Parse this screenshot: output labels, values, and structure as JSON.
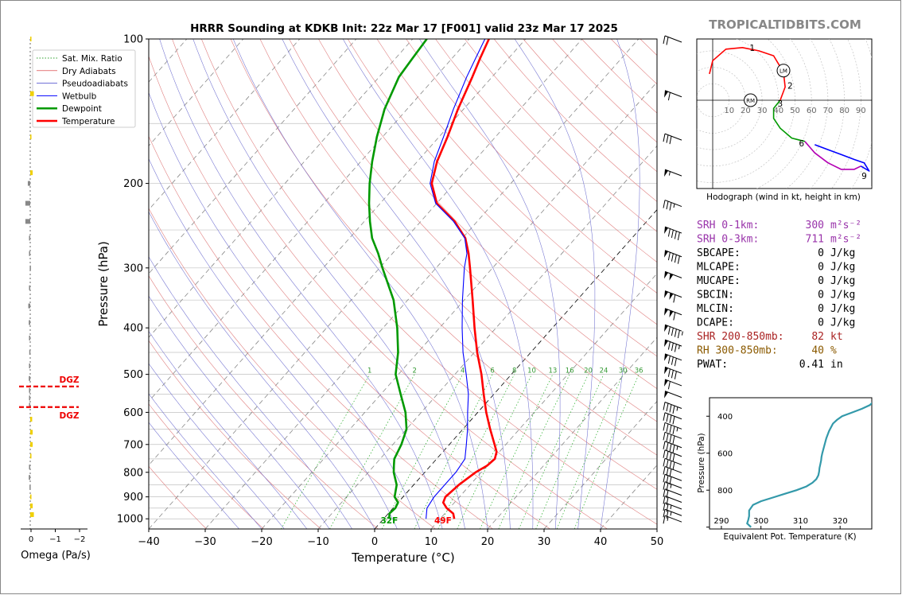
{
  "chart_data": [
    {
      "type": "skew-t",
      "title": "HRRR Sounding at KDKB Init: 22z Mar 17 [F001] valid 23z Mar 17 2025",
      "xlabel": "Temperature (°C)",
      "ylabel": "Pressure (hPa)",
      "xlim": [
        -40,
        50
      ],
      "ylim": [
        1050,
        100
      ],
      "yscale": "log",
      "xticks": [
        "−40",
        "−30",
        "−20",
        "−10",
        "0",
        "10",
        "20",
        "30",
        "40",
        "50"
      ],
      "yticks": [
        "100",
        "200",
        "300",
        "400",
        "500",
        "600",
        "700",
        "800",
        "900",
        "1000"
      ],
      "legend_position": "top-left",
      "legend": [
        {
          "label": "Sat. Mix. Ratio",
          "color": "#2ca02c",
          "style": "dotted"
        },
        {
          "label": "Dry Adiabats",
          "color": "#d62728",
          "style": "solid-thin"
        },
        {
          "label": "Pseudoadiabats",
          "color": "#1f1fbf",
          "style": "solid-thin"
        },
        {
          "label": "Wetbulb",
          "color": "#0000ff",
          "style": "solid"
        },
        {
          "label": "Dewpoint",
          "color": "#009900",
          "style": "solid-thick"
        },
        {
          "label": "Temperature",
          "color": "#ff0000",
          "style": "solid-thick"
        }
      ],
      "series": [
        {
          "name": "Temperature",
          "color": "#ff0000",
          "points": [
            [
              1000,
              12.5
            ],
            [
              975,
              11.5
            ],
            [
              950,
              9.5
            ],
            [
              925,
              8
            ],
            [
              900,
              7.5
            ],
            [
              850,
              8
            ],
            [
              800,
              9
            ],
            [
              775,
              10
            ],
            [
              750,
              10.3
            ],
            [
              725,
              9.5
            ],
            [
              700,
              8
            ],
            [
              650,
              4.8
            ],
            [
              600,
              1.5
            ],
            [
              550,
              -1.8
            ],
            [
              500,
              -5.3
            ],
            [
              450,
              -9.5
            ],
            [
              400,
              -13.8
            ],
            [
              350,
              -18.5
            ],
            [
              300,
              -24
            ],
            [
              280,
              -26.5
            ],
            [
              260,
              -29.5
            ],
            [
              240,
              -34
            ],
            [
              220,
              -40
            ],
            [
              200,
              -44
            ],
            [
              180,
              -46.5
            ],
            [
              160,
              -48.5
            ],
            [
              140,
              -51
            ],
            [
              120,
              -53.5
            ],
            [
              110,
              -55
            ],
            [
              100,
              -56.5
            ]
          ]
        },
        {
          "name": "Wetbulb",
          "color": "#0000ff",
          "points": [
            [
              1000,
              7.5
            ],
            [
              950,
              6
            ],
            [
              900,
              5.5
            ],
            [
              850,
              5.5
            ],
            [
              800,
              5.5
            ],
            [
              750,
              5
            ],
            [
              700,
              3
            ],
            [
              650,
              0.8
            ],
            [
              600,
              -1.8
            ],
            [
              550,
              -4.5
            ],
            [
              500,
              -8
            ],
            [
              450,
              -12
            ],
            [
              400,
              -16
            ],
            [
              350,
              -20.3
            ],
            [
              300,
              -25
            ],
            [
              280,
              -26.8
            ],
            [
              260,
              -29.6
            ],
            [
              240,
              -34.2
            ],
            [
              220,
              -40.2
            ],
            [
              200,
              -44.3
            ],
            [
              180,
              -47
            ],
            [
              160,
              -49.2
            ],
            [
              140,
              -51.8
            ],
            [
              120,
              -54.5
            ],
            [
              110,
              -55.8
            ],
            [
              100,
              -57.2
            ]
          ]
        },
        {
          "name": "Dewpoint",
          "color": "#009900",
          "points": [
            [
              1000,
              1
            ],
            [
              975,
              0.2
            ],
            [
              950,
              0.4
            ],
            [
              925,
              0
            ],
            [
              900,
              -1.5
            ],
            [
              850,
              -3
            ],
            [
              800,
              -5.5
            ],
            [
              775,
              -6.5
            ],
            [
              750,
              -7.5
            ],
            [
              700,
              -8.5
            ],
            [
              650,
              -10
            ],
            [
              600,
              -12.8
            ],
            [
              550,
              -16.5
            ],
            [
              500,
              -20.5
            ],
            [
              450,
              -23.5
            ],
            [
              400,
              -27.5
            ],
            [
              350,
              -32.5
            ],
            [
              300,
              -39.5
            ],
            [
              280,
              -42.5
            ],
            [
              260,
              -46
            ],
            [
              240,
              -49
            ],
            [
              220,
              -52
            ],
            [
              200,
              -55
            ],
            [
              180,
              -58
            ],
            [
              160,
              -61
            ],
            [
              140,
              -64
            ],
            [
              120,
              -66.5
            ],
            [
              110,
              -67
            ],
            [
              100,
              -67.5
            ]
          ]
        }
      ],
      "surface_labels": [
        {
          "text": "32F",
          "color": "#009900"
        },
        {
          "text": "49F",
          "color": "#ff0000"
        }
      ],
      "mixing_ratio_labels": [
        "1",
        "2",
        "4",
        "6",
        "8",
        "10",
        "13",
        "16",
        "20",
        "24",
        "30",
        "36"
      ],
      "mixing_ratios": [
        1,
        2,
        4,
        6,
        8,
        10,
        13,
        16,
        20,
        24,
        30,
        36
      ],
      "wind_barb_pressures": [
        100,
        130,
        160,
        190,
        220,
        250,
        280,
        310,
        340,
        370,
        400,
        430,
        460,
        490,
        520,
        550,
        580,
        610,
        640,
        670,
        700,
        730,
        760,
        790,
        820,
        850,
        880,
        910,
        940,
        970,
        1000
      ],
      "wind_barb_speeds_kt": [
        20,
        60,
        30,
        55,
        35,
        90,
        90,
        100,
        110,
        110,
        95,
        85,
        80,
        80,
        60,
        50,
        45,
        40,
        45,
        40,
        45,
        40,
        40,
        30,
        30,
        25,
        20,
        20,
        25,
        25,
        15
      ]
    },
    {
      "type": "line",
      "title": "Omega",
      "xlabel": "Omega (Pa/s)",
      "xticks": [
        "0",
        "−1",
        "−2"
      ],
      "xlim": [
        0.3,
        -2.3
      ],
      "dgz_label": "DGZ",
      "dgz_bounds_hpa": [
        530,
        585
      ],
      "values_hpa_omega": [
        [
          100,
          -0.05
        ],
        [
          130,
          -0.15
        ],
        [
          160,
          -0.05
        ],
        [
          190,
          -0.1
        ],
        [
          200,
          0.1
        ],
        [
          220,
          0.2
        ],
        [
          240,
          0.2
        ],
        [
          260,
          0.05
        ],
        [
          280,
          0.05
        ],
        [
          300,
          0.02
        ],
        [
          330,
          0.05
        ],
        [
          360,
          0.08
        ],
        [
          390,
          0.06
        ],
        [
          420,
          0.05
        ],
        [
          450,
          0.04
        ],
        [
          480,
          0.05
        ],
        [
          510,
          0.06
        ],
        [
          540,
          0.05
        ],
        [
          560,
          0.05
        ],
        [
          580,
          0.05
        ],
        [
          620,
          -0.08
        ],
        [
          660,
          -0.1
        ],
        [
          700,
          -0.1
        ],
        [
          740,
          -0.05
        ],
        [
          780,
          0.05
        ],
        [
          820,
          0.06
        ],
        [
          860,
          0.03
        ],
        [
          900,
          -0.05
        ],
        [
          940,
          -0.1
        ],
        [
          980,
          -0.15
        ]
      ]
    },
    {
      "type": "hodograph",
      "title": "Hodograph (wind in kt, height in km)",
      "ring_labels": [
        "10",
        "20",
        "30",
        "40",
        "50",
        "60",
        "70",
        "80",
        "90"
      ],
      "height_labels": [
        "1",
        "2",
        "3",
        "6",
        "9"
      ],
      "storm_motion_labels": [
        "LM",
        "RM"
      ],
      "segments": [
        {
          "color": "#ff0000",
          "points": [
            [
              -2,
              16
            ],
            [
              0,
              24
            ],
            [
              8,
              31
            ],
            [
              18,
              32
            ],
            [
              28,
              30
            ],
            [
              37,
              27
            ],
            [
              43,
              17
            ],
            [
              44,
              8
            ],
            [
              41,
              0
            ]
          ]
        },
        {
          "color": "#009900",
          "points": [
            [
              41,
              0
            ],
            [
              37,
              -5
            ],
            [
              37,
              -11
            ],
            [
              41,
              -17
            ],
            [
              48,
              -23
            ],
            [
              52,
              -24
            ],
            [
              56,
              -25
            ]
          ]
        },
        {
          "color": "#b300b3",
          "points": [
            [
              56,
              -25
            ],
            [
              62,
              -32
            ],
            [
              70,
              -38
            ],
            [
              78,
              -42
            ],
            [
              86,
              -42
            ],
            [
              90,
              -40
            ]
          ]
        },
        {
          "color": "#0000ff",
          "points": [
            [
              90,
              -40
            ],
            [
              95,
              -43
            ],
            [
              92,
              -38
            ],
            [
              86,
              -36
            ],
            [
              78,
              -33
            ],
            [
              70,
              -30
            ],
            [
              62,
              -27
            ]
          ]
        }
      ]
    },
    {
      "type": "line",
      "title": "",
      "xlabel": "Equivalent Pot. Temperature (K)",
      "ylabel": "Pressure (hPa)",
      "xticks": [
        "290",
        "300",
        "310",
        "320"
      ],
      "yticks": [
        "400",
        "600",
        "800"
      ],
      "xlim": [
        287,
        328
      ],
      "ylim": [
        1010,
        300
      ],
      "color": "#3399aa",
      "points": [
        [
          1000,
          297.5
        ],
        [
          980,
          296.5
        ],
        [
          960,
          296.8
        ],
        [
          940,
          297
        ],
        [
          910,
          297
        ],
        [
          880,
          298
        ],
        [
          860,
          300
        ],
        [
          840,
          303
        ],
        [
          820,
          306
        ],
        [
          800,
          309
        ],
        [
          780,
          311.5
        ],
        [
          760,
          313
        ],
        [
          740,
          314
        ],
        [
          720,
          314.5
        ],
        [
          700,
          314.7
        ],
        [
          680,
          314.8
        ],
        [
          660,
          315
        ],
        [
          640,
          315.2
        ],
        [
          620,
          315.3
        ],
        [
          600,
          315.5
        ],
        [
          560,
          316
        ],
        [
          520,
          316.5
        ],
        [
          480,
          317.2
        ],
        [
          440,
          318.2
        ],
        [
          420,
          319.2
        ],
        [
          400,
          320.5
        ],
        [
          380,
          323
        ],
        [
          360,
          325.5
        ],
        [
          340,
          327.5
        ],
        [
          320,
          328.5
        ],
        [
          300,
          330
        ]
      ]
    }
  ],
  "header": {
    "brand": "TROPICALTIDBITS.COM"
  },
  "stats": [
    {
      "label": "SRH 0-1km:",
      "value": "300",
      "unit": "m²s⁻²",
      "color": "#9933aa"
    },
    {
      "label": "SRH 0-3km:",
      "value": "711",
      "unit": "m²s⁻²",
      "color": "#9933aa"
    },
    {
      "label": "SBCAPE:",
      "value": "0",
      "unit": "J/kg",
      "color": "#000000"
    },
    {
      "label": "MLCAPE:",
      "value": "0",
      "unit": "J/kg",
      "color": "#000000"
    },
    {
      "label": "MUCAPE:",
      "value": "0",
      "unit": "J/kg",
      "color": "#000000"
    },
    {
      "label": "SBCIN:",
      "value": "0",
      "unit": "J/kg",
      "color": "#000000"
    },
    {
      "label": "MLCIN:",
      "value": "0",
      "unit": "J/kg",
      "color": "#000000"
    },
    {
      "label": "DCAPE:",
      "value": "0",
      "unit": "J/kg",
      "color": "#000000"
    },
    {
      "label": "SHR 200-850mb:",
      "value": "82",
      "unit": "kt",
      "color": "#aa2222"
    },
    {
      "label": "RH 300-850mb:",
      "value": "40",
      "unit": "%",
      "color": "#8b5a00"
    },
    {
      "label": "PWAT:",
      "value": "0.41",
      "unit": "in",
      "color": "#000000"
    }
  ]
}
